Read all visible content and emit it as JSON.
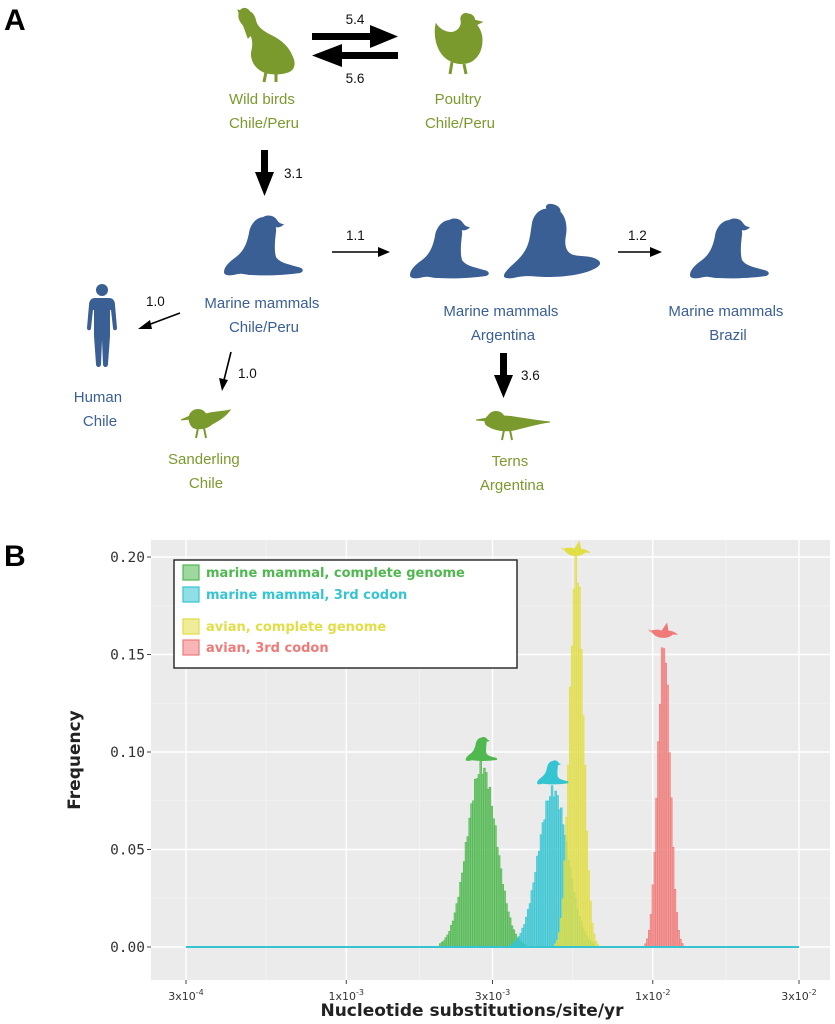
{
  "panel_a": {
    "letter": "A",
    "nodes": {
      "wild_birds": [
        "Wild birds",
        "Chile/Peru"
      ],
      "poultry": [
        "Poultry",
        "Chile/Peru"
      ],
      "mm_chile": [
        "Marine mammals",
        "Chile/Peru"
      ],
      "mm_argentina": [
        "Marine mammals",
        "Argentina"
      ],
      "mm_brazil": [
        "Marine mammals",
        "Brazil"
      ],
      "human": [
        "Human",
        "Chile"
      ],
      "sanderling": [
        "Sanderling",
        "Chile"
      ],
      "terns": [
        "Terns",
        "Argentina"
      ]
    },
    "rates": {
      "birds_to_poultry": "5.4",
      "poultry_to_birds": "5.6",
      "birds_to_mm": "3.1",
      "mm_chile_to_argentina": "1.1",
      "argentina_to_brazil": "1.2",
      "mm_to_human": "1.0",
      "mm_to_sanderling": "1.0",
      "argentina_to_terns": "3.6"
    },
    "colors": {
      "avian": "#7a9a2e",
      "mammal": "#3a5f95"
    },
    "icons": [
      "pelican-icon",
      "chicken-icon",
      "sea-lion-icon",
      "elephant-seal-icon",
      "human-icon",
      "sanderling-icon",
      "tern-icon"
    ]
  },
  "panel_b": {
    "letter": "B",
    "chart_data": {
      "type": "histogram",
      "xlabel": "Nucleotide substitutions/site/yr",
      "ylabel": "Frequency",
      "x_scale": "log",
      "xlim": [
        0.0003,
        0.03
      ],
      "ylim": [
        0,
        0.21
      ],
      "grid": true,
      "legend_position": "top-left",
      "x_ticks": [
        0.0003,
        0.001,
        0.003,
        0.01,
        0.03
      ],
      "x_tick_labels": [
        "3x10-4",
        "1x10-3",
        "3x10-3",
        "1x10-2",
        "3x10-2"
      ],
      "y_ticks": [
        0,
        0.05,
        0.1,
        0.15,
        0.2
      ],
      "y_tick_labels": [
        "0.00",
        "0.05",
        "0.10",
        "0.15",
        "0.20"
      ],
      "series": [
        {
          "name": "marine mammal, complete genome",
          "color": "#4fb84f",
          "icon": "sea-lion-icon",
          "mode": 0.00275,
          "peak": 0.092,
          "log_sd": 0.048
        },
        {
          "name": "marine mammal, 3rd codon",
          "color": "#35c5d2",
          "icon": "sea-lion-icon",
          "mode": 0.0047,
          "peak": 0.08,
          "log_sd": 0.048
        },
        {
          "name": "avian, complete genome",
          "color": "#e1de46",
          "icon": "bird-icon",
          "mode": 0.0056,
          "peak": 0.197,
          "log_sd": 0.022
        },
        {
          "name": "avian, 3rd codon",
          "color": "#f07a78",
          "icon": "bird-icon",
          "mode": 0.0108,
          "peak": 0.155,
          "log_sd": 0.02
        }
      ]
    }
  }
}
